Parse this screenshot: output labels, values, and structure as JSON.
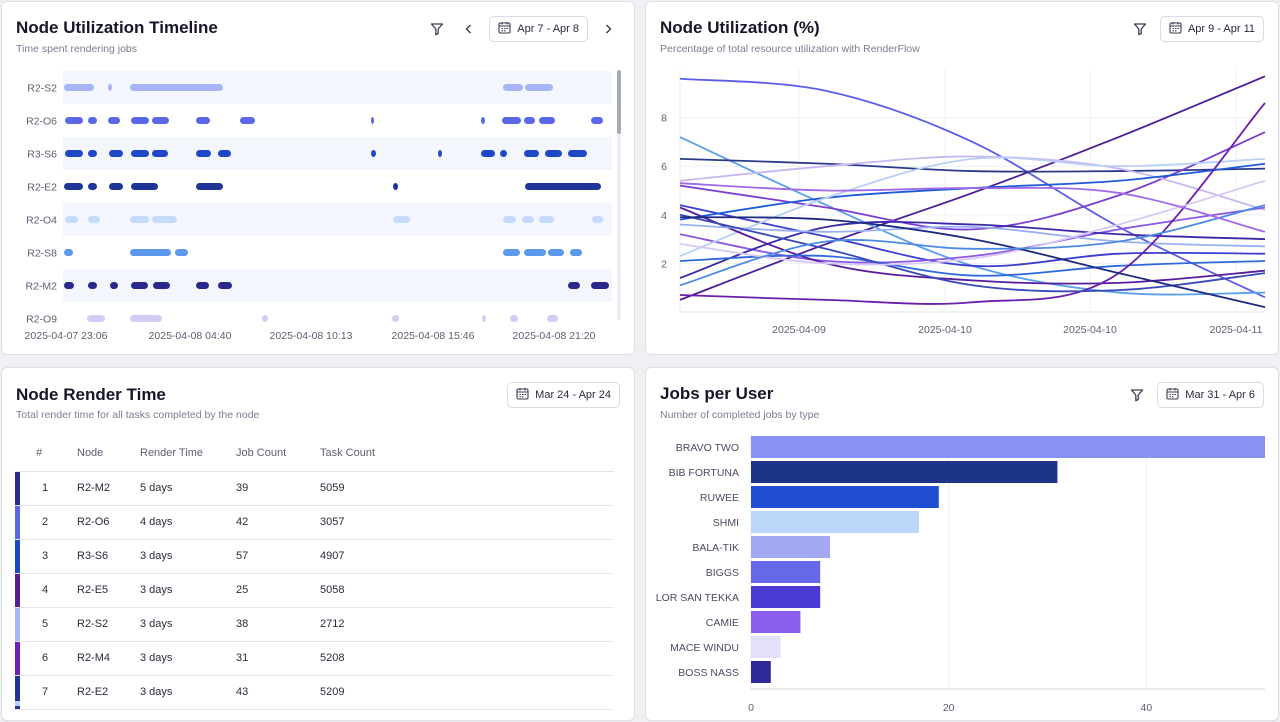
{
  "timeline": {
    "title": "Node Utilization Timeline",
    "subtitle": "Time spent rendering jobs",
    "date_range": "Apr 7 - Apr 8",
    "icons": {
      "filter": "filter-icon",
      "prev": "chevron-left-icon",
      "next": "chevron-right-icon",
      "calendar": "calendar-icon"
    },
    "x_ticks": [
      "2025-04-07 23:06",
      "2025-04-08 04:40",
      "2025-04-08 10:13",
      "2025-04-08 15:46",
      "2025-04-08 21:20"
    ],
    "rows": [
      {
        "node": "R2-S2",
        "color": "#a7b4f5",
        "segs": [
          [
            62,
            92
          ],
          [
            106,
            110
          ],
          [
            128,
            221
          ],
          [
            501,
            521
          ],
          [
            523,
            551
          ]
        ]
      },
      {
        "node": "R2-O6",
        "color": "#5a68e8",
        "segs": [
          [
            63,
            81
          ],
          [
            86,
            95
          ],
          [
            106,
            118
          ],
          [
            129,
            147
          ],
          [
            150,
            167
          ],
          [
            194,
            208
          ],
          [
            238,
            253
          ],
          [
            369,
            372
          ],
          [
            479,
            483
          ],
          [
            500,
            519
          ],
          [
            522,
            533
          ],
          [
            537,
            553
          ],
          [
            589,
            601
          ]
        ]
      },
      {
        "node": "R3-S6",
        "color": "#1f48c6",
        "segs": [
          [
            63,
            81
          ],
          [
            86,
            95
          ],
          [
            107,
            121
          ],
          [
            129,
            147
          ],
          [
            150,
            166
          ],
          [
            194,
            209
          ],
          [
            216,
            229
          ],
          [
            369,
            374
          ],
          [
            436,
            440
          ],
          [
            479,
            493
          ],
          [
            498,
            505
          ],
          [
            522,
            537
          ],
          [
            543,
            560
          ],
          [
            566,
            585
          ]
        ]
      },
      {
        "node": "R2-E2",
        "color": "#1e3497",
        "segs": [
          [
            62,
            81
          ],
          [
            86,
            95
          ],
          [
            107,
            121
          ],
          [
            129,
            156
          ],
          [
            194,
            221
          ],
          [
            391,
            396
          ],
          [
            523,
            599
          ]
        ]
      },
      {
        "node": "R2-O4",
        "color": "#c6dbfb",
        "segs": [
          [
            63,
            76
          ],
          [
            86,
            98
          ],
          [
            128,
            147
          ],
          [
            150,
            175
          ],
          [
            391,
            408
          ],
          [
            501,
            514
          ],
          [
            520,
            532
          ],
          [
            537,
            552
          ],
          [
            590,
            601
          ]
        ]
      },
      {
        "node": "R2-S8",
        "color": "#5c98ec",
        "segs": [
          [
            62,
            71
          ],
          [
            128,
            169
          ],
          [
            173,
            186
          ],
          [
            501,
            518
          ],
          [
            522,
            544
          ],
          [
            546,
            562
          ],
          [
            568,
            580
          ]
        ]
      },
      {
        "node": "R2-M2",
        "color": "#2b2a8c",
        "segs": [
          [
            62,
            72
          ],
          [
            86,
            95
          ],
          [
            108,
            116
          ],
          [
            129,
            146
          ],
          [
            151,
            168
          ],
          [
            194,
            207
          ],
          [
            216,
            230
          ],
          [
            566,
            578
          ],
          [
            589,
            607
          ]
        ]
      },
      {
        "node": "R2-O9",
        "color": "#d5ccf6",
        "segs": [
          [
            85,
            103
          ],
          [
            128,
            160
          ],
          [
            260,
            266
          ],
          [
            390,
            397
          ],
          [
            480,
            484
          ],
          [
            508,
            516
          ],
          [
            545,
            556
          ]
        ]
      }
    ]
  },
  "utilization": {
    "title": "Node Utilization (%)",
    "subtitle": "Percentage of total resource utilization with RenderFlow",
    "date_range": "Apr 9 - Apr 11",
    "icons": {
      "filter": "filter-icon",
      "calendar": "calendar-icon"
    },
    "y_ticks": [
      "2",
      "4",
      "6",
      "8"
    ],
    "x_ticks": [
      "2025-04-09",
      "2025-04-10",
      "2025-04-10",
      "2025-04-11"
    ],
    "series": [
      {
        "color": "#5a5ee8",
        "y": [
          9.6,
          9.1,
          7.0,
          3.5,
          0.6
        ]
      },
      {
        "color": "#4a1d96",
        "y": [
          0.5,
          2.8,
          4.9,
          7.2,
          9.7
        ]
      },
      {
        "color": "#5aa0ea",
        "y": [
          7.2,
          4.4,
          1.9,
          0.8,
          0.8
        ]
      },
      {
        "color": "#2a3a88",
        "y": [
          6.3,
          6.1,
          5.8,
          5.8,
          5.9
        ]
      },
      {
        "color": "#7a3fd0",
        "y": [
          5.2,
          4.3,
          3.4,
          4.8,
          7.4
        ]
      },
      {
        "color": "#c8b8f0",
        "y": [
          5.4,
          6.0,
          6.4,
          5.9,
          4.2
        ]
      },
      {
        "color": "#3a3fd0",
        "y": [
          4.4,
          3.1,
          1.9,
          2.4,
          2.4
        ]
      },
      {
        "color": "#1d5bd8",
        "y": [
          3.8,
          4.7,
          5.1,
          5.4,
          6.1
        ]
      },
      {
        "color": "#8a58e4",
        "y": [
          3.2,
          2.1,
          2.3,
          3.4,
          4.3
        ]
      },
      {
        "color": "#3a2aa8",
        "y": [
          1.4,
          3.5,
          3.6,
          3.2,
          3.0
        ]
      },
      {
        "color": "#b8d0f8",
        "y": [
          2.3,
          4.7,
          6.3,
          6.0,
          6.3
        ]
      },
      {
        "color": "#571e9c",
        "y": [
          4.3,
          2.0,
          1.3,
          1.2,
          1.7
        ]
      },
      {
        "color": "#9ab0f2",
        "y": [
          3.6,
          3.3,
          3.5,
          2.9,
          2.7
        ]
      },
      {
        "color": "#2f68dc",
        "y": [
          2.1,
          2.3,
          1.5,
          1.9,
          2.1
        ]
      },
      {
        "color": "#6a1fae",
        "y": [
          0.7,
          0.5,
          0.4,
          1.6,
          8.6
        ]
      },
      {
        "color": "#3a49b8",
        "y": [
          4.0,
          2.6,
          1.1,
          0.9,
          1.6
        ]
      },
      {
        "color": "#d8c8f6",
        "y": [
          2.8,
          2.0,
          2.2,
          3.6,
          5.4
        ]
      },
      {
        "color": "#1e2a80",
        "y": [
          3.9,
          3.8,
          3.0,
          1.6,
          0.2
        ]
      },
      {
        "color": "#4d8ae2",
        "y": [
          1.1,
          2.9,
          2.6,
          2.9,
          4.4
        ]
      },
      {
        "color": "#a06ae8",
        "y": [
          5.3,
          5.0,
          5.1,
          4.9,
          3.3
        ]
      }
    ]
  },
  "render_time": {
    "title": "Node Render Time",
    "subtitle": "Total render time for all tasks completed by the node",
    "date_range": "Mar 24 - Apr 24",
    "icons": {
      "calendar": "calendar-icon"
    },
    "columns": [
      "#",
      "Node",
      "Render Time",
      "Job Count",
      "Task Count"
    ],
    "rows": [
      {
        "rank": "1",
        "node": "R2-M2",
        "render_time": "5 days",
        "job_count": "39",
        "task_count": "5059",
        "color": "#2b2a8c"
      },
      {
        "rank": "2",
        "node": "R2-O6",
        "render_time": "4 days",
        "job_count": "42",
        "task_count": "3057",
        "color": "#5a68e8"
      },
      {
        "rank": "3",
        "node": "R3-S6",
        "render_time": "3 days",
        "job_count": "57",
        "task_count": "4907",
        "color": "#1f48c6"
      },
      {
        "rank": "4",
        "node": "R2-E5",
        "render_time": "3 days",
        "job_count": "25",
        "task_count": "5058",
        "color": "#5a1e8e"
      },
      {
        "rank": "5",
        "node": "R2-S2",
        "render_time": "3 days",
        "job_count": "38",
        "task_count": "2712",
        "color": "#a7b4f5"
      },
      {
        "rank": "6",
        "node": "R2-M4",
        "render_time": "3 days",
        "job_count": "31",
        "task_count": "5208",
        "color": "#6a22b8"
      },
      {
        "rank": "7",
        "node": "R2-E2",
        "render_time": "3 days",
        "job_count": "43",
        "task_count": "5209",
        "color": "#1e3497"
      }
    ]
  },
  "jobs_per_user": {
    "title": "Jobs per User",
    "subtitle": "Number of completed jobs by type",
    "date_range": "Mar 31 - Apr 6",
    "icons": {
      "filter": "filter-icon",
      "calendar": "calendar-icon"
    }
  },
  "chart_data": [
    {
      "type": "bar",
      "title": "Jobs per User",
      "subtitle": "Number of completed jobs by type",
      "orientation": "horizontal",
      "categories": [
        "BRAVO TWO",
        "BIB FORTUNA",
        "RUWEE",
        "SHMI",
        "BALA-TIK",
        "BIGGS",
        "LOR SAN TEKKA",
        "CAMIE",
        "MACE WINDU",
        "BOSS NASS"
      ],
      "values": [
        52,
        31,
        19,
        17,
        8,
        7,
        7,
        5,
        3,
        2
      ],
      "colors": [
        "#8892f2",
        "#1e3488",
        "#1f4fd0",
        "#bcd6fa",
        "#a2a9f1",
        "#6668e8",
        "#4a3ad2",
        "#8a5ff0",
        "#e2e0fa",
        "#2e2a98"
      ],
      "x_ticks": [
        "0",
        "20",
        "40"
      ],
      "xlim": [
        0,
        52
      ],
      "grid": true
    }
  ]
}
